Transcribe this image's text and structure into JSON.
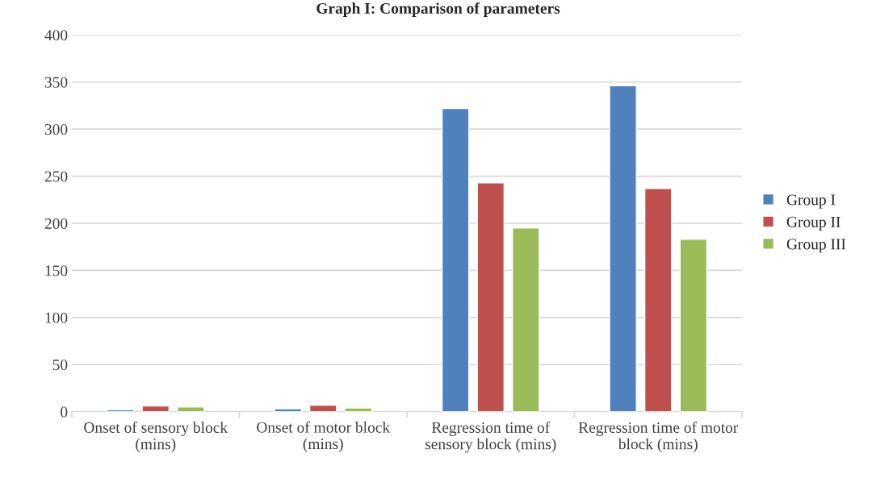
{
  "chart_data": {
    "type": "bar",
    "title": "Graph I: Comparison of parameters",
    "categories": [
      "Onset of sensory block (mins)",
      "Onset of motor block (mins)",
      "Regression time of sensory block (mins)",
      "Regression time of motor block (mins)"
    ],
    "series": [
      {
        "name": "Group I",
        "color": "#4f81bd",
        "values": [
          2,
          3,
          322,
          346
        ]
      },
      {
        "name": "Group II",
        "color": "#c0504d",
        "values": [
          6,
          7,
          243,
          237
        ]
      },
      {
        "name": "Group III",
        "color": "#9bbb59",
        "values": [
          5,
          4,
          195,
          183
        ]
      }
    ],
    "ylim": [
      0,
      400
    ],
    "yticks": [
      0,
      50,
      100,
      150,
      200,
      250,
      300,
      350,
      400
    ],
    "grid": "y",
    "legend": "right"
  }
}
